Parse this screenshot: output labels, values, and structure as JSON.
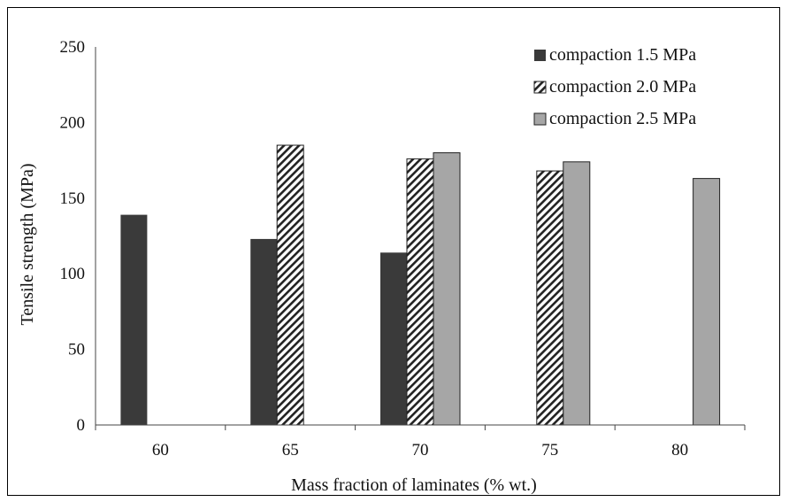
{
  "chart_data": {
    "type": "bar",
    "title": "",
    "xlabel": "Mass fraction of laminates (% wt.)",
    "ylabel": "Tensile strength (MPa)",
    "ylim": [
      0,
      250
    ],
    "yticks": [
      "0",
      "50",
      "100",
      "150",
      "200",
      "250"
    ],
    "categories": [
      "60",
      "65",
      "70",
      "75",
      "80"
    ],
    "grid": false,
    "legend_position": "top-right",
    "series": [
      {
        "name": "compaction 1.5 MPa",
        "pattern": "solid-dark",
        "color": "#3a3a3a",
        "values": [
          139,
          123,
          114,
          null,
          null
        ]
      },
      {
        "name": "compaction 2.0 MPa",
        "pattern": "diagonal-hatch",
        "color": "#222222",
        "values": [
          null,
          185,
          176,
          168,
          null
        ]
      },
      {
        "name": "compaction 2.5 MPa",
        "pattern": "solid-light",
        "color": "#a6a6a6",
        "values": [
          null,
          null,
          180,
          174,
          163
        ]
      }
    ]
  }
}
